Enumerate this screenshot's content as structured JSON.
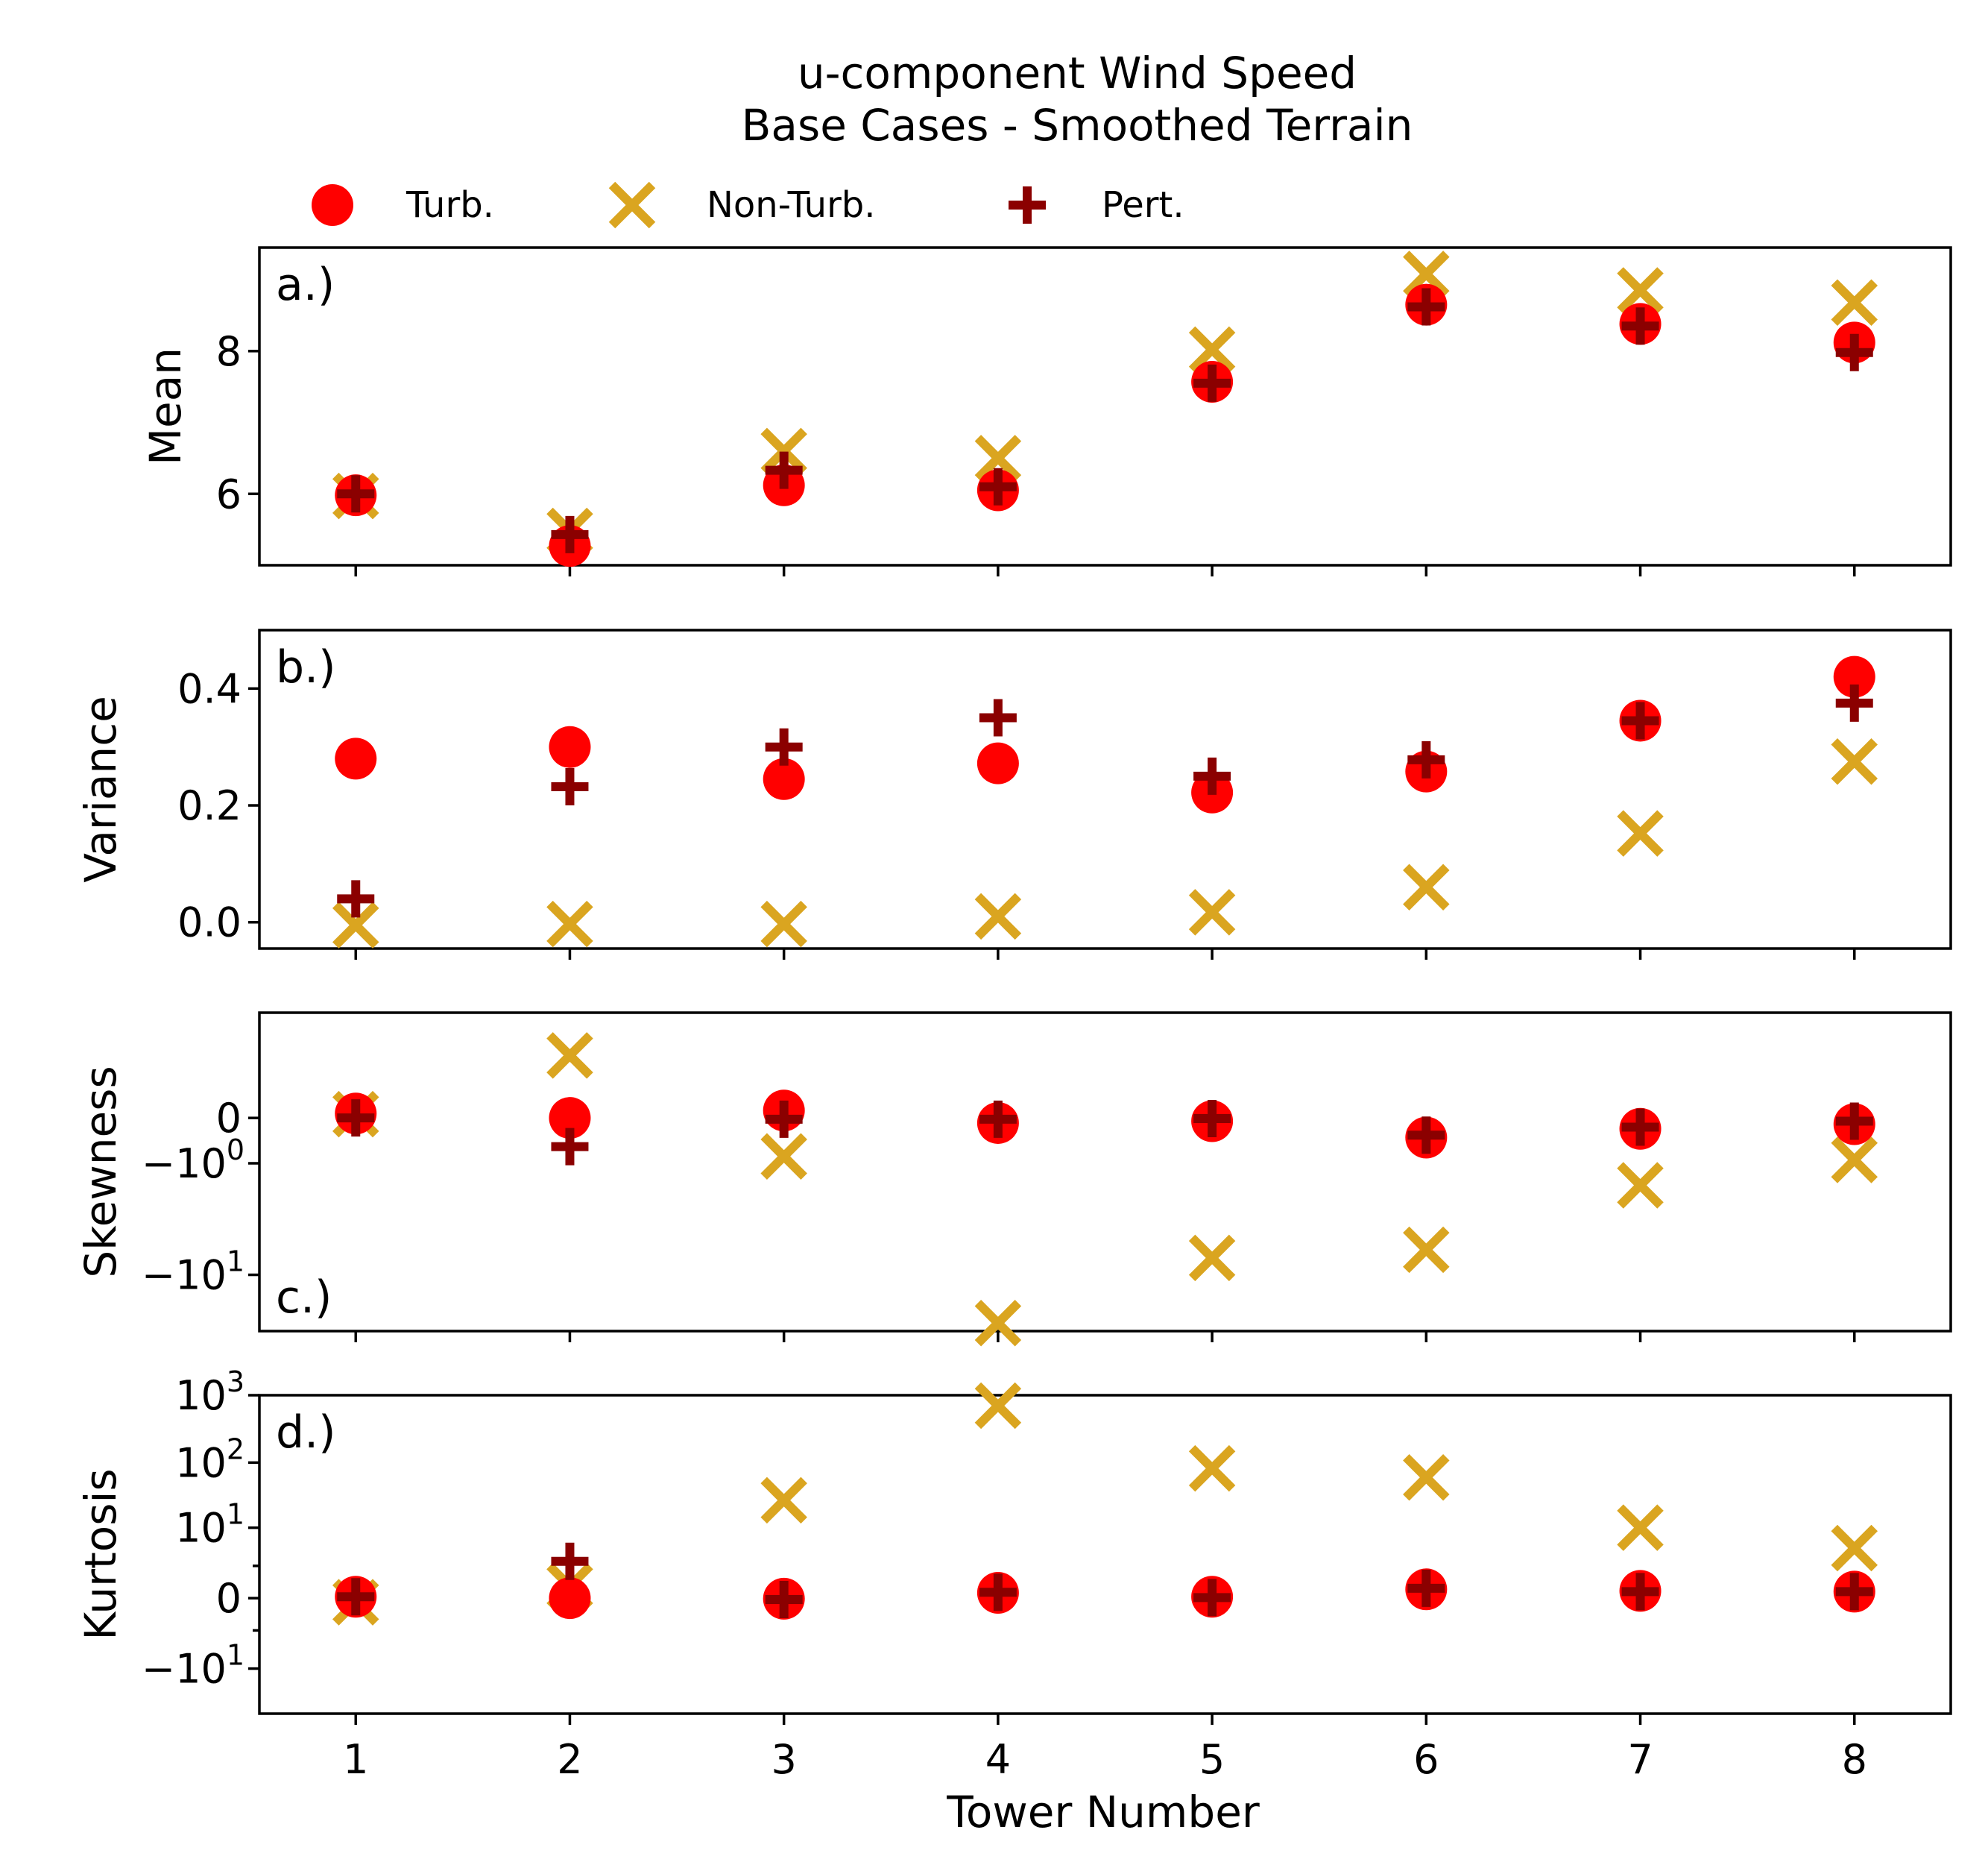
{
  "chart_data": {
    "type": "scatter",
    "title": "u-component Wind Speed",
    "subtitle": "Base Cases - Smoothed Terrain",
    "xlabel": "Tower Number",
    "x": [
      1,
      2,
      3,
      4,
      5,
      6,
      7,
      8
    ],
    "x_tick_labels": [
      "1",
      "2",
      "3",
      "4",
      "5",
      "6",
      "7",
      "8"
    ],
    "xlim": [
      0.55,
      8.45
    ],
    "legend": [
      {
        "name": "Turb.",
        "marker": "circle",
        "color": "#ff0000"
      },
      {
        "name": "Non-Turb.",
        "marker": "x",
        "color": "#daa520"
      },
      {
        "name": "Pert.",
        "marker": "plus",
        "color": "#8b0000"
      }
    ],
    "panels": [
      {
        "label": "a.)",
        "ylabel": "Mean",
        "yscale": "linear",
        "ylim": [
          5.0,
          9.45
        ],
        "yticks": [
          {
            "value": 6,
            "label": "6"
          },
          {
            "value": 8,
            "label": "8"
          }
        ],
        "series": [
          {
            "name": "Turb.",
            "values": [
              5.98,
              5.27,
              6.12,
              6.05,
              7.57,
              8.65,
              8.38,
              8.12
            ]
          },
          {
            "name": "Non-Turb.",
            "values": [
              5.97,
              5.48,
              6.6,
              6.5,
              8.02,
              9.08,
              8.85,
              8.68
            ]
          },
          {
            "name": "Pert.",
            "values": [
              6.0,
              5.43,
              6.33,
              6.1,
              7.55,
              8.62,
              8.35,
              7.98
            ]
          }
        ]
      },
      {
        "label": "b.)",
        "ylabel": "Variance",
        "yscale": "linear",
        "ylim": [
          -0.045,
          0.5
        ],
        "yticks": [
          {
            "value": 0.0,
            "label": "0.0"
          },
          {
            "value": 0.2,
            "label": "0.2"
          },
          {
            "value": 0.4,
            "label": "0.4"
          }
        ],
        "series": [
          {
            "name": "Turb.",
            "values": [
              0.28,
              0.3,
              0.245,
              0.272,
              0.222,
              0.258,
              0.345,
              0.42
            ]
          },
          {
            "name": "Non-Turb.",
            "values": [
              -0.005,
              -0.003,
              -0.003,
              0.01,
              0.017,
              0.06,
              0.152,
              0.275
            ]
          },
          {
            "name": "Pert.",
            "values": [
              0.04,
              0.232,
              0.3,
              0.35,
              0.25,
              0.278,
              0.345,
              0.375
            ]
          }
        ]
      },
      {
        "label": "c.)",
        "ylabel": "Skewness",
        "yscale": "symlog",
        "ylim": [
          -25,
          4
        ],
        "yticks": [
          {
            "value": 0,
            "label": "0",
            "exp": ""
          },
          {
            "value": -1,
            "label": "−10",
            "exp": "0"
          },
          {
            "value": -10,
            "label": "−10",
            "exp": "1"
          }
        ],
        "series": [
          {
            "name": "Turb.",
            "values": [
              0.07,
              0.0,
              0.12,
              -0.08,
              -0.05,
              -0.35,
              -0.18,
              -0.1
            ]
          },
          {
            "name": "Non-Turb.",
            "values": [
              0.06,
              1.6,
              -0.8,
              -22,
              -7.5,
              -6.5,
              -1.8,
              -0.9
            ]
          },
          {
            "name": "Pert.",
            "values": [
              0.0,
              -0.55,
              -0.02,
              -0.02,
              -0.01,
              -0.3,
              -0.15,
              -0.05
            ]
          }
        ]
      },
      {
        "label": "d.)",
        "ylabel": "Kurtosis",
        "yscale": "symlog",
        "ylim": [
          -50,
          1000
        ],
        "yticks": [
          {
            "value": -10,
            "label": "−10",
            "exp": "1"
          },
          {
            "value": 0,
            "label": "0",
            "exp": ""
          },
          {
            "value": 10,
            "label": "10",
            "exp": "1"
          },
          {
            "value": 100,
            "label": "10",
            "exp": "2"
          },
          {
            "value": 1000,
            "label": "10",
            "exp": "3"
          }
        ],
        "series": [
          {
            "name": "Turb.",
            "values": [
              0.05,
              0.0,
              -0.02,
              0.2,
              0.05,
              0.35,
              0.28,
              0.25
            ]
          },
          {
            "name": "Non-Turb.",
            "values": [
              -0.15,
              0.5,
              27,
              700,
              82,
              60,
              10,
              4.5
            ]
          },
          {
            "name": "Pert.",
            "values": [
              0.05,
              2.5,
              -0.05,
              0.22,
              0.02,
              0.4,
              0.25,
              0.25
            ]
          }
        ]
      }
    ]
  }
}
